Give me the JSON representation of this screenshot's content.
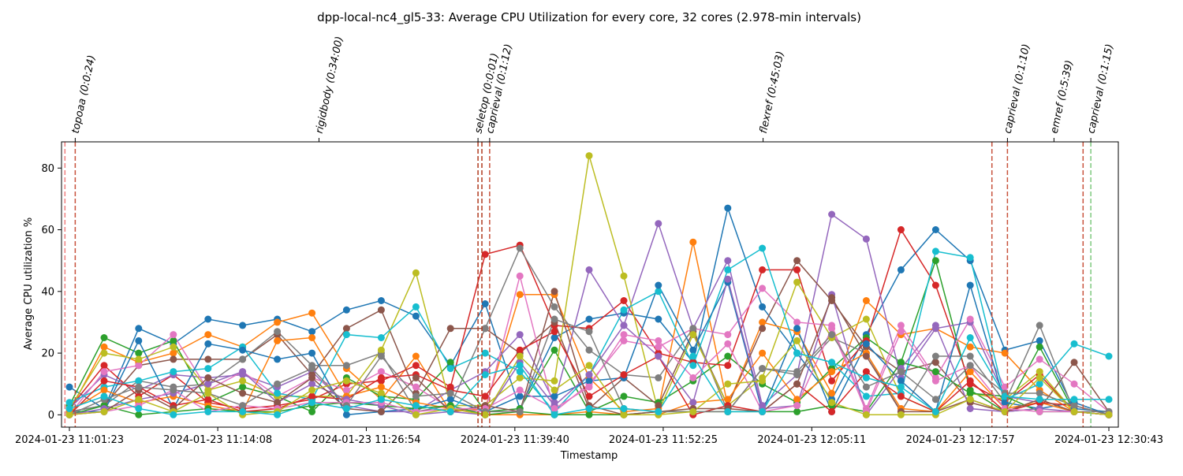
{
  "chart_data": {
    "type": "line",
    "title": "dpp-local-nc4_gl5-33: Average CPU Utilization for every core, 32 cores (2.978-min intervals)",
    "xlabel": "Timestamp",
    "ylabel": "Average CPU utilization %",
    "ylim": [
      -4,
      88.5
    ],
    "yticks": [
      0,
      20,
      40,
      60,
      80
    ],
    "xticks": [
      "2024-01-23 11:01:23",
      "2024-01-23 11:14:08",
      "2024-01-23 11:26:54",
      "2024-01-23 11:39:40",
      "2024-01-23 11:52:25",
      "2024-01-23 12:05:11",
      "2024-01-23 12:17:57",
      "2024-01-23 12:30:43"
    ],
    "grid": false,
    "x": [
      "11:01:23",
      "11:04:22",
      "11:07:20",
      "11:10:19",
      "11:13:18",
      "11:16:16",
      "11:19:15",
      "11:22:14",
      "11:25:12",
      "11:28:11",
      "11:31:10",
      "11:34:08",
      "11:37:07",
      "11:40:06",
      "11:43:04",
      "11:46:03",
      "11:49:02",
      "11:52:00",
      "11:54:59",
      "11:57:58",
      "12:00:56",
      "12:03:55",
      "12:06:54",
      "12:09:52",
      "12:12:51",
      "12:15:50",
      "12:18:48",
      "12:21:47",
      "12:24:46",
      "12:27:44",
      "12:30:43"
    ],
    "series": [
      {
        "color": "#1f77b4",
        "values": [
          9,
          2,
          28,
          23,
          31,
          29,
          31,
          27,
          34,
          37,
          32,
          16,
          36,
          2,
          25,
          31,
          33,
          31,
          17,
          67,
          35,
          20,
          5,
          26,
          47,
          60,
          50,
          21,
          24,
          2,
          1
        ]
      },
      {
        "color": "#ff7f0e",
        "values": [
          1,
          22,
          17,
          20,
          26,
          22,
          30,
          33,
          15,
          5,
          19,
          1,
          2,
          39,
          39,
          12,
          1,
          2,
          56,
          3,
          30,
          27,
          7,
          37,
          26,
          28,
          22,
          20,
          8,
          1,
          0
        ]
      },
      {
        "color": "#2ca02c",
        "values": [
          3,
          25,
          20,
          24,
          4,
          9,
          6,
          1,
          12,
          6,
          5,
          17,
          1,
          2,
          21,
          1,
          6,
          4,
          11,
          19,
          10,
          4,
          15,
          25,
          17,
          50,
          8,
          1,
          22,
          1,
          0
        ]
      },
      {
        "color": "#d62728",
        "values": [
          2,
          16,
          6,
          13,
          4,
          2,
          3,
          5,
          10,
          11,
          16,
          9,
          52,
          55,
          29,
          28,
          37,
          20,
          17,
          16,
          47,
          47,
          11,
          24,
          60,
          42,
          10,
          4,
          13,
          1,
          0
        ]
      },
      {
        "color": "#9467bd",
        "values": [
          2,
          13,
          8,
          13,
          12,
          13,
          9,
          14,
          3,
          1,
          1,
          8,
          14,
          26,
          4,
          47,
          29,
          62,
          28,
          50,
          3,
          13,
          65,
          57,
          12,
          28,
          30,
          6,
          4,
          1,
          0
        ]
      },
      {
        "color": "#8c564b",
        "values": [
          1,
          3,
          16,
          18,
          18,
          18,
          26,
          13,
          28,
          34,
          7,
          28,
          28,
          20,
          30,
          2,
          12,
          3,
          27,
          3,
          28,
          50,
          37,
          22,
          14,
          17,
          4,
          1,
          2,
          17,
          1
        ]
      },
      {
        "color": "#e377c2",
        "values": [
          0,
          14,
          16,
          26,
          8,
          14,
          6,
          12,
          8,
          14,
          9,
          2,
          1,
          45,
          1,
          10,
          24,
          22,
          28,
          26,
          41,
          30,
          29,
          2,
          29,
          12,
          31,
          9,
          18,
          10,
          1
        ]
      },
      {
        "color": "#7f7f7f",
        "values": [
          1,
          3,
          11,
          9,
          10,
          18,
          27,
          16,
          16,
          20,
          1,
          3,
          28,
          54,
          35,
          21,
          13,
          12,
          28,
          1,
          15,
          13,
          25,
          20,
          1,
          19,
          19,
          4,
          29,
          1,
          1
        ]
      },
      {
        "color": "#bcbd22",
        "values": [
          2,
          20,
          18,
          22,
          8,
          11,
          6,
          6,
          6,
          21,
          46,
          3,
          3,
          12,
          11,
          84,
          45,
          1,
          26,
          3,
          12,
          43,
          25,
          31,
          6,
          1,
          7,
          5,
          14,
          1,
          0
        ]
      },
      {
        "color": "#17becf",
        "values": [
          4,
          9,
          11,
          14,
          15,
          22,
          7,
          5,
          26,
          25,
          35,
          15,
          20,
          14,
          1,
          13,
          34,
          40,
          16,
          47,
          54,
          20,
          17,
          6,
          7,
          53,
          51,
          5,
          10,
          23,
          19
        ]
      },
      {
        "color": "#1f77b4",
        "values": [
          1,
          1,
          24,
          2,
          23,
          21,
          18,
          20,
          0,
          1,
          2,
          5,
          1,
          6,
          6,
          11,
          12,
          42,
          21,
          43,
          1,
          28,
          1,
          23,
          11,
          1,
          42,
          4,
          2,
          4,
          0
        ]
      },
      {
        "color": "#ff7f0e",
        "values": [
          1,
          8,
          4,
          6,
          3,
          1,
          24,
          25,
          6,
          9,
          4,
          2,
          0,
          0,
          0,
          1,
          0,
          0,
          4,
          5,
          20,
          5,
          14,
          20,
          2,
          1,
          14,
          2,
          4,
          1,
          0
        ]
      },
      {
        "color": "#2ca02c",
        "values": [
          0,
          3,
          0,
          1,
          2,
          1,
          1,
          3,
          4,
          3,
          2,
          3,
          0,
          1,
          0,
          0,
          0,
          1,
          1,
          1,
          1,
          1,
          3,
          1,
          17,
          14,
          7,
          6,
          1,
          1,
          0
        ]
      },
      {
        "color": "#d62728",
        "values": [
          0,
          11,
          9,
          3,
          5,
          1,
          2,
          6,
          5,
          12,
          13,
          8,
          6,
          21,
          27,
          6,
          13,
          19,
          0,
          3,
          1,
          10,
          1,
          14,
          6,
          1,
          11,
          1,
          4,
          3,
          0
        ]
      },
      {
        "color": "#9467bd",
        "values": [
          0,
          2,
          5,
          7,
          10,
          14,
          4,
          10,
          5,
          3,
          0,
          1,
          0,
          17,
          3,
          13,
          29,
          19,
          4,
          44,
          2,
          3,
          39,
          0,
          15,
          29,
          2,
          1,
          2,
          1,
          0
        ]
      },
      {
        "color": "#8c564b",
        "values": [
          0,
          1,
          8,
          2,
          12,
          7,
          4,
          12,
          2,
          1,
          12,
          1,
          3,
          1,
          40,
          3,
          0,
          1,
          2,
          2,
          1,
          10,
          38,
          19,
          1,
          1,
          5,
          1,
          5,
          1,
          0
        ]
      },
      {
        "color": "#e377c2",
        "values": [
          0,
          1,
          3,
          8,
          1,
          3,
          2,
          4,
          4,
          4,
          1,
          2,
          2,
          8,
          2,
          9,
          26,
          24,
          12,
          23,
          1,
          3,
          28,
          1,
          27,
          11,
          16,
          2,
          1,
          1,
          0
        ]
      },
      {
        "color": "#7f7f7f",
        "values": [
          0,
          5,
          9,
          8,
          7,
          3,
          10,
          15,
          3,
          19,
          6,
          7,
          1,
          1,
          31,
          27,
          2,
          1,
          1,
          1,
          15,
          14,
          26,
          9,
          14,
          5,
          16,
          7,
          7,
          3,
          0
        ]
      },
      {
        "color": "#bcbd22",
        "values": [
          0,
          1,
          5,
          1,
          7,
          0,
          1,
          8,
          11,
          7,
          0,
          2,
          0,
          19,
          8,
          16,
          0,
          0,
          1,
          10,
          11,
          24,
          4,
          0,
          0,
          0,
          5,
          1,
          12,
          1,
          0
        ]
      },
      {
        "color": "#17becf",
        "values": [
          2,
          6,
          2,
          0,
          1,
          1,
          0,
          4,
          2,
          5,
          3,
          1,
          13,
          16,
          0,
          2,
          2,
          1,
          19,
          1,
          1,
          20,
          17,
          12,
          9,
          1,
          25,
          6,
          5,
          5,
          5
        ]
      }
    ],
    "annotations": [
      {
        "label": "topoaa (0:0:24)",
        "x": "11:01:53"
      },
      {
        "label": "rigidbody (0:34:00)",
        "x": "11:22:50"
      },
      {
        "label": "seletop (0:0:01)",
        "x": "11:36:30"
      },
      {
        "label": "caprieval (0:1:12)",
        "x": "11:37:30"
      },
      {
        "label": "flexref (0:45:03)",
        "x": "12:01:00"
      },
      {
        "label": "caprieval (0:1:10)",
        "x": "12:22:00"
      },
      {
        "label": "emref (0:5:39)",
        "x": "12:26:00"
      },
      {
        "label": "caprieval (0:1:15)",
        "x": "12:29:10"
      }
    ],
    "vlines": [
      {
        "x": "11:01:00",
        "color": "#f08080"
      },
      {
        "x": "11:01:53",
        "color": "#c8523c"
      },
      {
        "x": "11:36:30",
        "color": "#b03a1e"
      },
      {
        "x": "11:36:50",
        "color": "#b03a1e"
      },
      {
        "x": "11:37:30",
        "color": "#c8523c"
      },
      {
        "x": "12:20:40",
        "color": "#c8523c"
      },
      {
        "x": "12:22:00",
        "color": "#c8523c"
      },
      {
        "x": "12:28:30",
        "color": "#c8523c"
      },
      {
        "x": "12:29:10",
        "color": "#7fc97f"
      }
    ]
  }
}
